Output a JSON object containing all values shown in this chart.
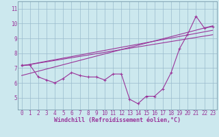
{
  "bg_color": "#cce8ee",
  "line_color": "#993399",
  "grid_color": "#99bbcc",
  "xlabel": "Windchill (Refroidissement éolien,°C)",
  "xlabel_fontsize": 6.0,
  "tick_fontsize": 5.5,
  "ylim": [
    4.2,
    11.5
  ],
  "xlim": [
    -0.5,
    23.5
  ],
  "yticks": [
    5,
    6,
    7,
    8,
    9,
    10,
    11
  ],
  "xticks": [
    0,
    1,
    2,
    3,
    4,
    5,
    6,
    7,
    8,
    9,
    10,
    11,
    12,
    13,
    14,
    15,
    16,
    17,
    18,
    19,
    20,
    21,
    22,
    23
  ],
  "series1": [
    7.2,
    7.2,
    6.4,
    6.2,
    6.0,
    6.3,
    6.7,
    6.5,
    6.4,
    6.4,
    6.2,
    6.6,
    6.6,
    4.9,
    4.6,
    5.1,
    5.1,
    5.6,
    6.7,
    8.3,
    9.3,
    10.5,
    9.7,
    9.8
  ],
  "series2_x": [
    0,
    23
  ],
  "series2_y": [
    7.15,
    9.55
  ],
  "series3_x": [
    0,
    23
  ],
  "series3_y": [
    6.5,
    9.85
  ],
  "series4_x": [
    0,
    23
  ],
  "series4_y": [
    7.15,
    9.25
  ]
}
